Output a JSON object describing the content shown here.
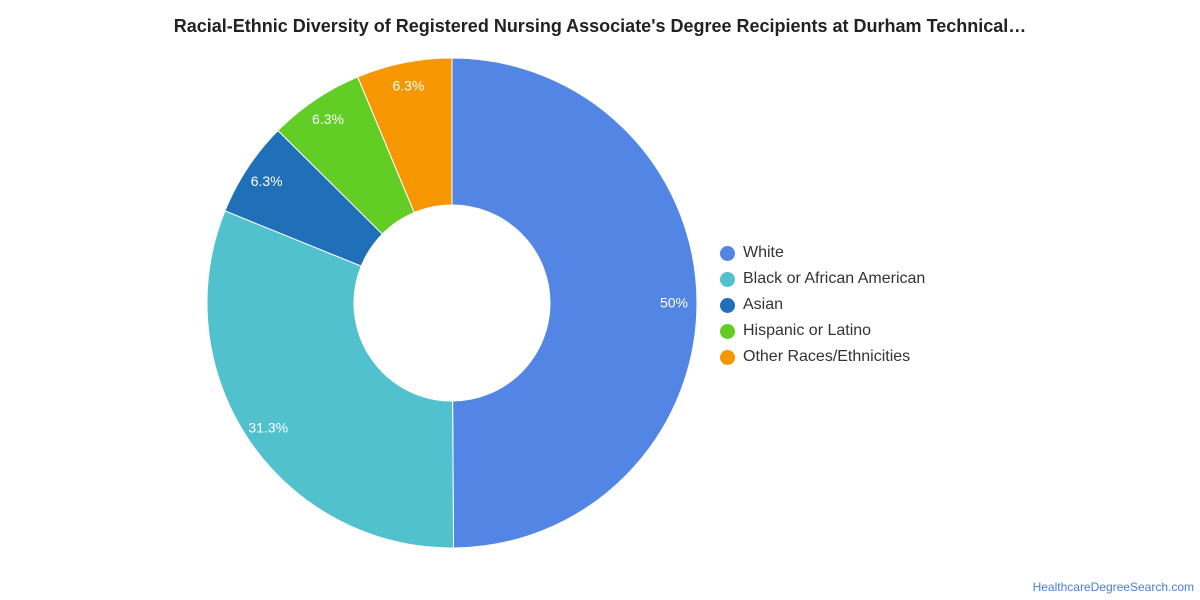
{
  "chart_data": {
    "type": "pie",
    "title": "Racial-Ethnic Diversity of Registered Nursing Associate's Degree Recipients at Durham Technical…",
    "donut": true,
    "legend_position": "right",
    "slices": [
      {
        "name": "White",
        "value": 50,
        "label": "50%",
        "color": "#5386e4"
      },
      {
        "name": "Black or African American",
        "value": 31.3,
        "label": "31.3%",
        "color": "#51c1ce"
      },
      {
        "name": "Asian",
        "value": 6.3,
        "label": "6.3%",
        "color": "#1f70b9"
      },
      {
        "name": "Hispanic or Latino",
        "value": 6.3,
        "label": "6.3%",
        "color": "#62cd25"
      },
      {
        "name": "Other Races/Ethnicities",
        "value": 6.3,
        "label": "6.3%",
        "color": "#f69600"
      }
    ]
  },
  "source": {
    "text": "HealthcareDegreeSearch.com"
  }
}
